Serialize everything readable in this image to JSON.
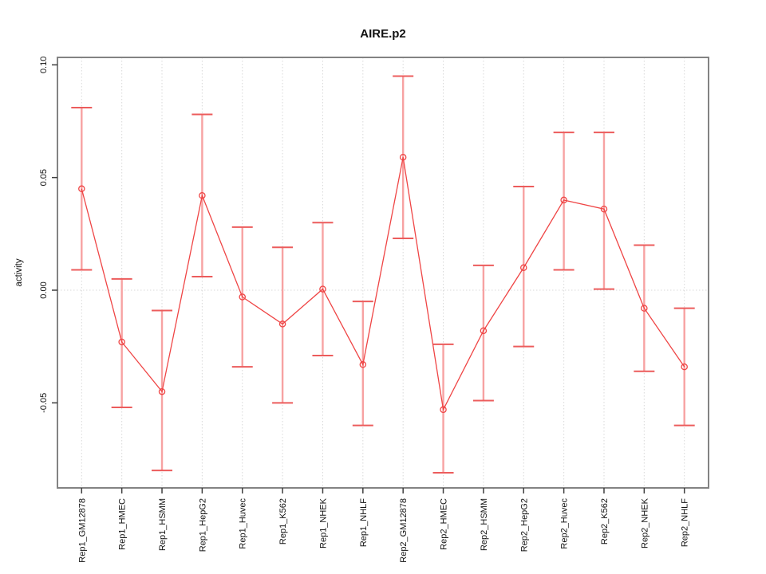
{
  "title": "AIRE.p2",
  "chart_data": {
    "type": "line",
    "title": "AIRE.p2",
    "xlabel": "",
    "ylabel": "activity",
    "categories": [
      "Rep1_GM12878",
      "Rep1_HMEC",
      "Rep1_HSMM",
      "Rep1_HepG2",
      "Rep1_Huvec",
      "Rep1_K562",
      "Rep1_NHEK",
      "Rep1_NHLF",
      "Rep2_GM12878",
      "Rep2_HMEC",
      "Rep2_HSMM",
      "Rep2_HepG2",
      "Rep2_Huvec",
      "Rep2_K562",
      "Rep2_NHEK",
      "Rep2_NHLF"
    ],
    "series": [
      {
        "name": "activity",
        "values": [
          0.045,
          -0.023,
          -0.045,
          0.042,
          -0.003,
          -0.015,
          0.0005,
          -0.033,
          0.059,
          -0.053,
          -0.018,
          0.01,
          0.04,
          0.036,
          -0.008,
          -0.034
        ],
        "error_upper": [
          0.081,
          0.005,
          -0.009,
          0.078,
          0.028,
          0.019,
          0.03,
          -0.005,
          0.095,
          -0.024,
          0.011,
          0.046,
          0.07,
          0.07,
          0.02,
          -0.008
        ],
        "error_lower": [
          0.009,
          -0.052,
          -0.08,
          0.006,
          -0.034,
          -0.05,
          -0.029,
          -0.06,
          0.023,
          -0.081,
          -0.049,
          -0.025,
          0.009,
          0.0005,
          -0.036,
          -0.06
        ]
      }
    ],
    "ylim": [
      -0.0875,
      0.1035
    ],
    "yticks": [
      -0.05,
      0.0,
      0.05,
      0.1
    ],
    "grid": "vertical dotted line per category; horizontal dotted line at y=0",
    "legend": "none",
    "marker": "open-circle",
    "colors": {
      "line": "#ef4545",
      "marker": "#ef4545",
      "error_stem": "#f7a2a2",
      "error_cap": "#ec5c5c",
      "grid": "#d9d9d9",
      "box": "#838383",
      "tick": "#3f3f3f",
      "text": "#111111",
      "background": "#ffffff"
    }
  }
}
